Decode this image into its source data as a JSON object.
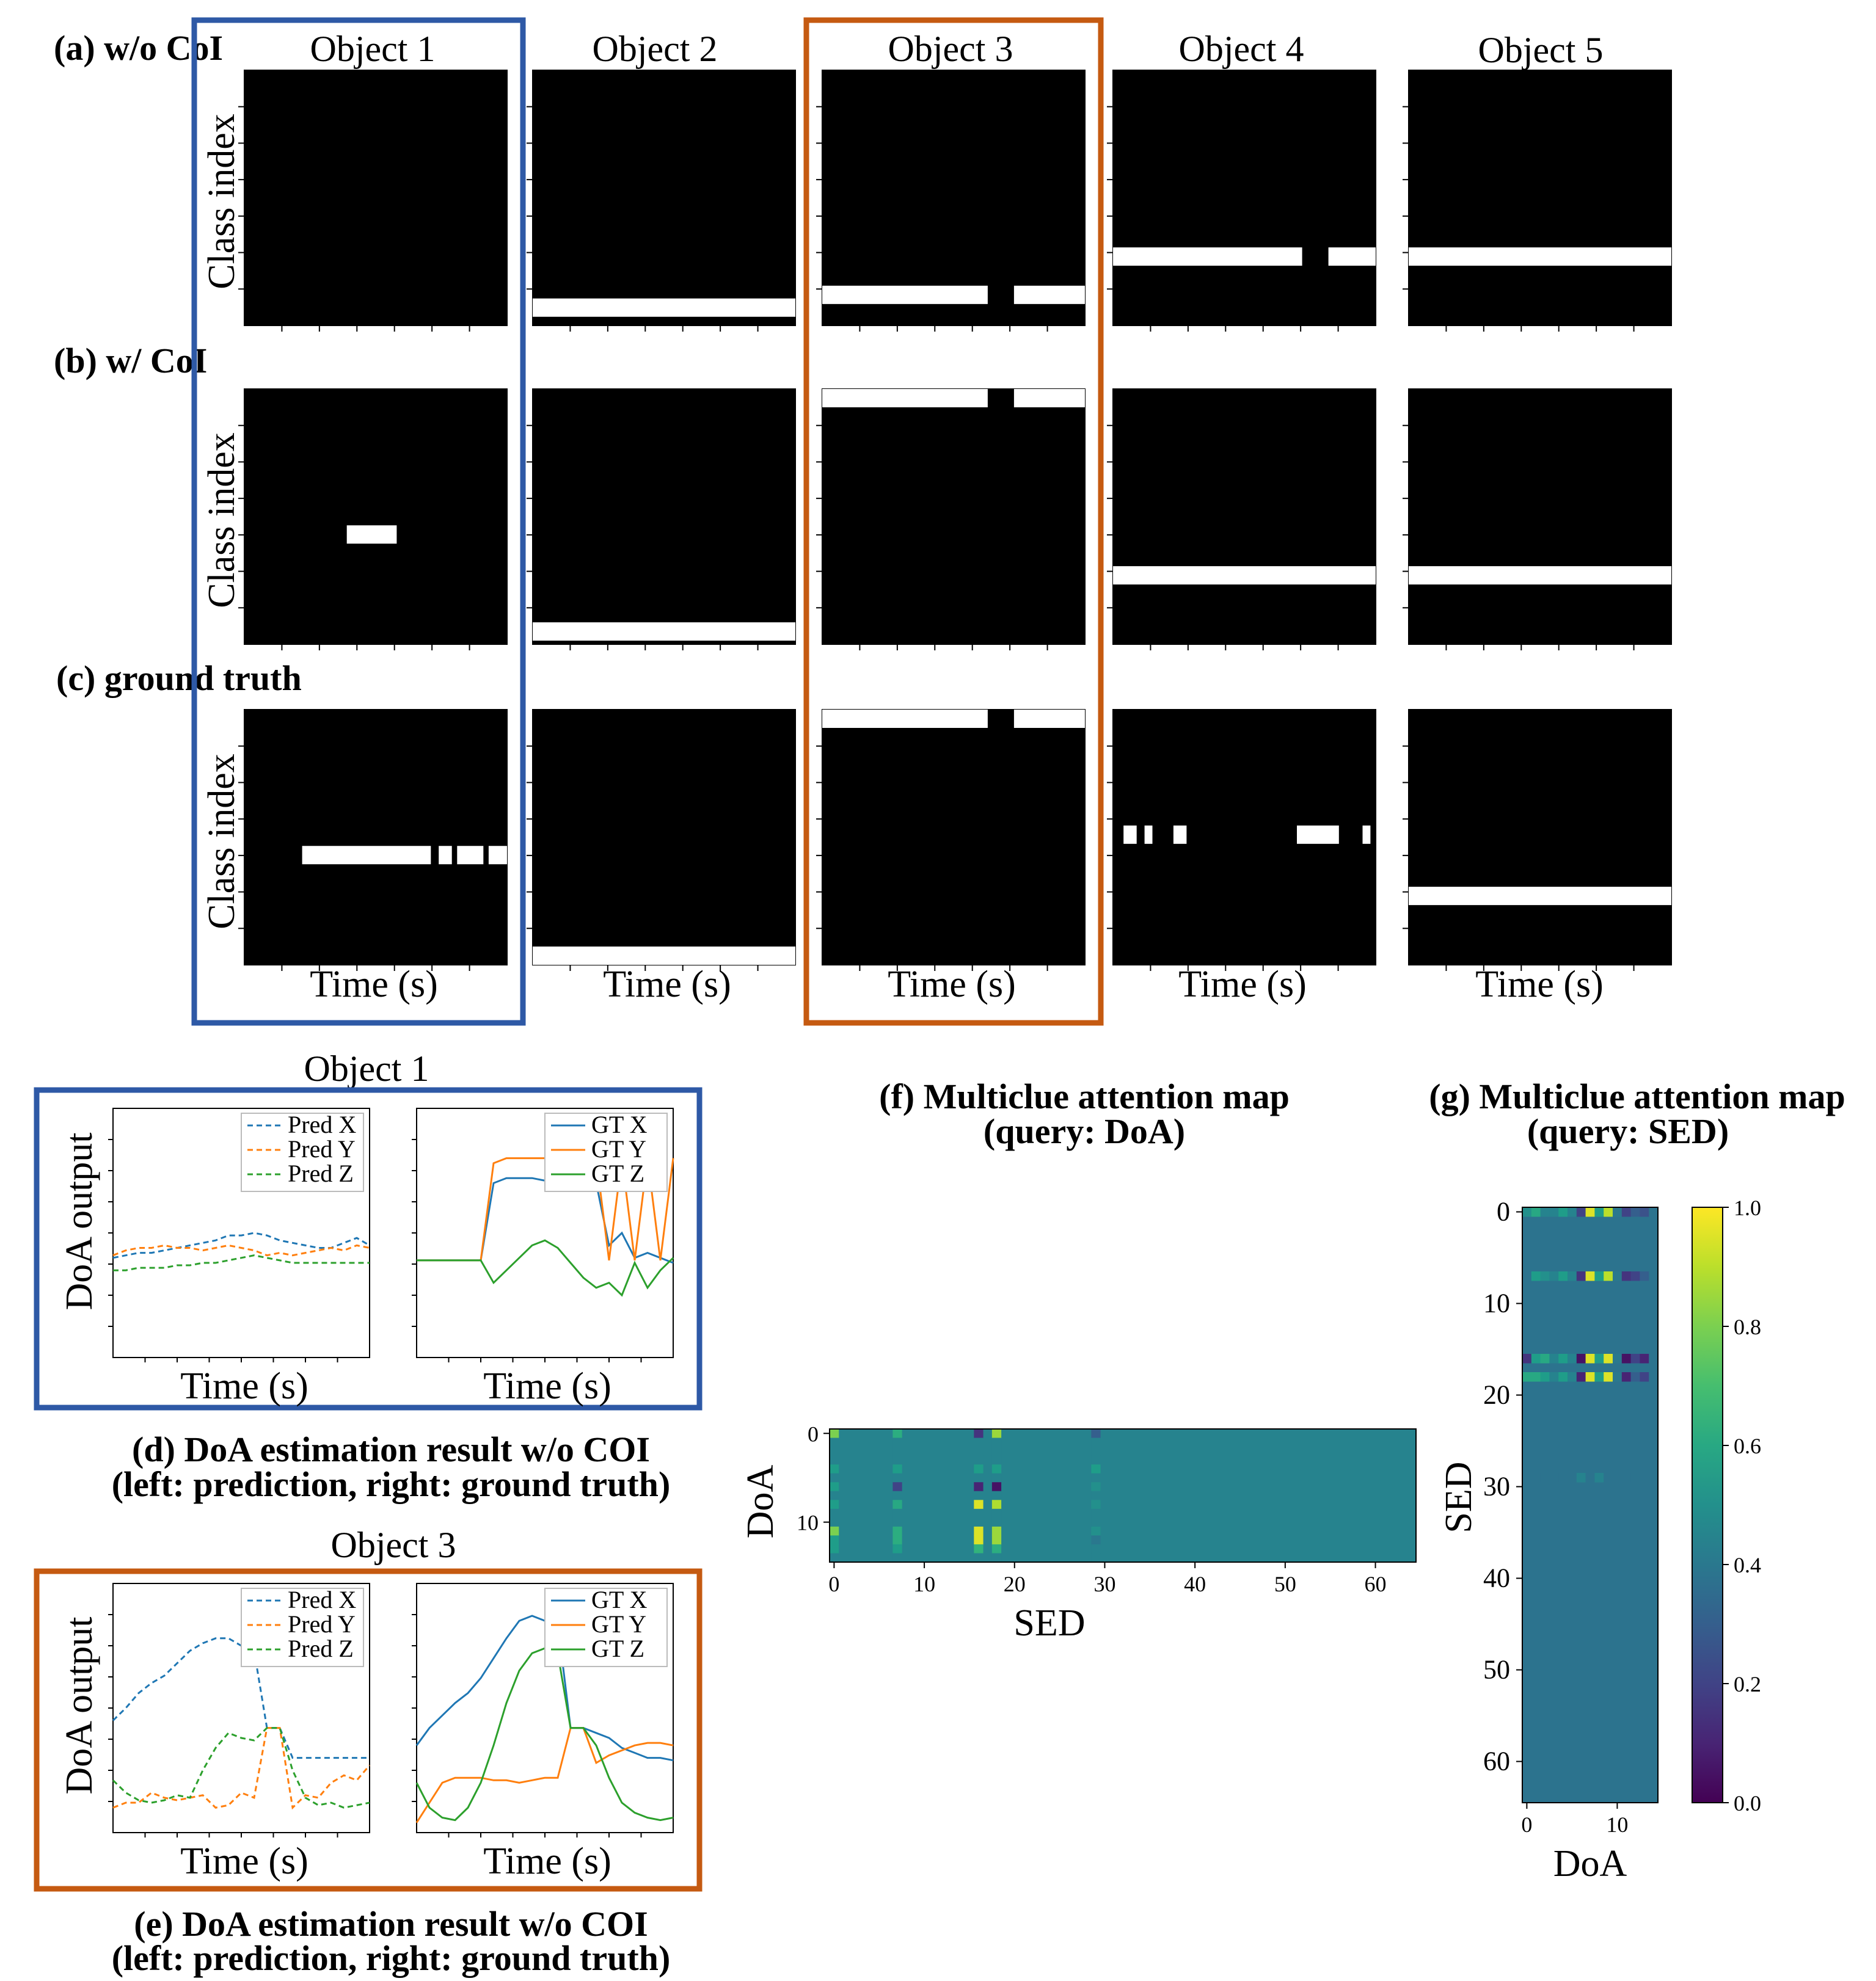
{
  "figure": {
    "row_labels": [
      "(a) w/o CoI",
      "(b) w/ CoI",
      "(c) ground truth"
    ],
    "column_titles": [
      "Object 1",
      "Object 2",
      "Object 3",
      "Object 4",
      "Object 5"
    ],
    "grid_ylabel": "Class index",
    "grid_xlabel": "Time (s)",
    "doa_ylabel": "DoA output",
    "doa_xlabel": "Time (s)",
    "doa_d_title": "Object 1",
    "doa_e_title": "Object 3",
    "caption_d": [
      "(d) DoA estimation result w/o COI",
      "(left: prediction, right: ground truth)"
    ],
    "caption_e": [
      "(e) DoA estimation result w/o COI",
      "(left: prediction, right: ground truth)"
    ],
    "caption_f": [
      "(f) Multiclue attention map",
      "(query: DoA)"
    ],
    "caption_g": [
      "(g) Multiclue attention map",
      "(query: SED)"
    ],
    "colors": {
      "highlight_object1": "#2e59a6",
      "highlight_object3": "#c55a11",
      "x": "#1f77b4",
      "y": "#ff7f0e",
      "z": "#2ca02c"
    }
  },
  "chart_data": [
    {
      "type": "heatmap",
      "name": "sed_activity_grid",
      "rows": [
        "w/o CoI",
        "w/ CoI",
        "ground truth"
      ],
      "objects": [
        "Object 1",
        "Object 2",
        "Object 3",
        "Object 4",
        "Object 5"
      ],
      "note_units": "Active segments as [class_fraction, start_fraction, end_fraction] of the time axis",
      "active": [
        [
          [],
          [
            [
              0.93,
              0.0,
              1.0
            ]
          ],
          [
            [
              0.88,
              0.0,
              0.63
            ],
            [
              0.88,
              0.73,
              1.0
            ]
          ],
          [
            [
              0.73,
              0.0,
              0.72
            ],
            [
              0.73,
              0.82,
              1.0
            ]
          ],
          [
            [
              0.73,
              0.0,
              1.0
            ]
          ]
        ],
        [
          [
            [
              0.57,
              0.39,
              0.58
            ]
          ],
          [
            [
              0.95,
              0.0,
              1.0
            ]
          ],
          [
            [
              0.03,
              0.0,
              0.63
            ],
            [
              0.03,
              0.73,
              1.0
            ]
          ],
          [
            [
              0.73,
              0.0,
              1.0
            ]
          ],
          [
            [
              0.73,
              0.0,
              1.0
            ]
          ]
        ],
        [
          [
            [
              0.57,
              0.22,
              0.71
            ],
            [
              0.57,
              0.74,
              0.79
            ],
            [
              0.57,
              0.81,
              0.91
            ],
            [
              0.57,
              0.93,
              1.0
            ]
          ],
          [
            [
              0.97,
              0.0,
              1.0
            ]
          ],
          [
            [
              0.03,
              0.0,
              0.63
            ],
            [
              0.03,
              0.73,
              1.0
            ]
          ],
          [
            [
              0.49,
              0.04,
              0.09
            ],
            [
              0.49,
              0.12,
              0.15
            ],
            [
              0.49,
              0.23,
              0.28
            ],
            [
              0.49,
              0.7,
              0.86
            ],
            [
              0.49,
              0.95,
              0.98
            ]
          ],
          [
            [
              0.73,
              0.0,
              1.0
            ]
          ]
        ]
      ]
    },
    {
      "type": "line",
      "name": "(d) Object 1 prediction",
      "x": [
        0,
        0.05,
        0.1,
        0.15,
        0.2,
        0.25,
        0.3,
        0.35,
        0.4,
        0.45,
        0.5,
        0.55,
        0.6,
        0.65,
        0.7,
        0.75,
        0.8,
        0.85,
        0.9,
        0.95,
        1.0
      ],
      "series": [
        {
          "name": "Pred X",
          "values": [
            0.4,
            0.41,
            0.42,
            0.42,
            0.43,
            0.44,
            0.45,
            0.46,
            0.47,
            0.49,
            0.49,
            0.5,
            0.49,
            0.47,
            0.46,
            0.45,
            0.44,
            0.44,
            0.46,
            0.48,
            0.45
          ]
        },
        {
          "name": "Pred Y",
          "values": [
            0.41,
            0.43,
            0.44,
            0.44,
            0.45,
            0.44,
            0.44,
            0.43,
            0.44,
            0.45,
            0.44,
            0.43,
            0.41,
            0.42,
            0.41,
            0.42,
            0.43,
            0.44,
            0.43,
            0.45,
            0.44
          ]
        },
        {
          "name": "Pred Z",
          "values": [
            0.35,
            0.35,
            0.36,
            0.36,
            0.36,
            0.37,
            0.37,
            0.38,
            0.38,
            0.39,
            0.4,
            0.41,
            0.4,
            0.39,
            0.38,
            0.38,
            0.38,
            0.38,
            0.38,
            0.38,
            0.38
          ]
        }
      ]
    },
    {
      "type": "line",
      "name": "(d) Object 1 ground truth",
      "x": [
        0,
        0.05,
        0.1,
        0.15,
        0.2,
        0.25,
        0.3,
        0.35,
        0.4,
        0.45,
        0.5,
        0.55,
        0.6,
        0.65,
        0.7,
        0.75,
        0.8,
        0.85,
        0.9,
        0.95,
        1.0
      ],
      "series": [
        {
          "name": "GT X",
          "values": [
            0.39,
            0.39,
            0.39,
            0.39,
            0.39,
            0.39,
            0.7,
            0.72,
            0.72,
            0.72,
            0.71,
            0.71,
            0.71,
            0.7,
            0.7,
            0.45,
            0.5,
            0.4,
            0.42,
            0.4,
            0.38
          ]
        },
        {
          "name": "GT Y",
          "values": [
            0.39,
            0.39,
            0.39,
            0.39,
            0.39,
            0.39,
            0.78,
            0.8,
            0.8,
            0.8,
            0.8,
            0.8,
            0.8,
            0.8,
            0.8,
            0.39,
            0.8,
            0.39,
            0.8,
            0.39,
            0.8
          ]
        },
        {
          "name": "GT Z",
          "values": [
            0.39,
            0.39,
            0.39,
            0.39,
            0.39,
            0.39,
            0.3,
            0.35,
            0.4,
            0.45,
            0.47,
            0.44,
            0.38,
            0.32,
            0.28,
            0.3,
            0.25,
            0.38,
            0.28,
            0.35,
            0.4
          ]
        }
      ]
    },
    {
      "type": "line",
      "name": "(e) Object 3 prediction",
      "x": [
        0,
        0.05,
        0.1,
        0.15,
        0.2,
        0.25,
        0.3,
        0.35,
        0.4,
        0.45,
        0.5,
        0.55,
        0.6,
        0.65,
        0.7,
        0.75,
        0.8,
        0.85,
        0.9,
        0.95,
        1.0
      ],
      "series": [
        {
          "name": "Pred X",
          "values": [
            0.45,
            0.5,
            0.56,
            0.6,
            0.63,
            0.68,
            0.73,
            0.76,
            0.78,
            0.78,
            0.75,
            0.73,
            0.42,
            0.42,
            0.3,
            0.3,
            0.3,
            0.3,
            0.3,
            0.3,
            0.3
          ]
        },
        {
          "name": "Pred Y",
          "values": [
            0.1,
            0.12,
            0.12,
            0.16,
            0.14,
            0.13,
            0.14,
            0.15,
            0.1,
            0.11,
            0.16,
            0.14,
            0.42,
            0.42,
            0.1,
            0.15,
            0.14,
            0.2,
            0.23,
            0.21,
            0.27
          ]
        },
        {
          "name": "Pred Z",
          "values": [
            0.21,
            0.16,
            0.13,
            0.12,
            0.13,
            0.15,
            0.14,
            0.25,
            0.34,
            0.4,
            0.38,
            0.37,
            0.42,
            0.42,
            0.25,
            0.14,
            0.11,
            0.12,
            0.1,
            0.11,
            0.12
          ]
        }
      ]
    },
    {
      "type": "line",
      "name": "(e) Object 3 ground truth",
      "x": [
        0,
        0.05,
        0.1,
        0.15,
        0.2,
        0.25,
        0.3,
        0.35,
        0.4,
        0.45,
        0.5,
        0.55,
        0.6,
        0.65,
        0.7,
        0.75,
        0.8,
        0.85,
        0.9,
        0.95,
        1.0
      ],
      "series": [
        {
          "name": "GT X",
          "values": [
            0.35,
            0.42,
            0.47,
            0.52,
            0.56,
            0.62,
            0.7,
            0.78,
            0.85,
            0.87,
            0.85,
            0.84,
            0.42,
            0.42,
            0.4,
            0.38,
            0.34,
            0.32,
            0.3,
            0.3,
            0.29
          ]
        },
        {
          "name": "GT Y",
          "values": [
            0.04,
            0.12,
            0.2,
            0.22,
            0.22,
            0.22,
            0.21,
            0.21,
            0.2,
            0.21,
            0.22,
            0.22,
            0.42,
            0.42,
            0.28,
            0.31,
            0.33,
            0.35,
            0.36,
            0.36,
            0.35
          ]
        },
        {
          "name": "GT Z",
          "values": [
            0.2,
            0.1,
            0.06,
            0.05,
            0.1,
            0.2,
            0.35,
            0.52,
            0.65,
            0.72,
            0.74,
            0.72,
            0.42,
            0.42,
            0.35,
            0.22,
            0.12,
            0.08,
            0.06,
            0.05,
            0.06
          ]
        }
      ]
    },
    {
      "type": "heatmap",
      "name": "(f) Multiclue attention map (query: DoA)",
      "xlabel": "SED",
      "ylabel": "DoA",
      "xticks": [
        0,
        10,
        20,
        30,
        40,
        50,
        60
      ],
      "yticks": [
        0,
        10
      ],
      "xlim": [
        0,
        65
      ],
      "ylim": [
        0,
        14
      ],
      "base_value": 0.45,
      "highlighted_columns": [
        0,
        7,
        16,
        18,
        29
      ],
      "cells": [
        {
          "col": 0,
          "values": [
            0.8,
            0.45,
            0.45,
            0.45,
            0.55,
            0.45,
            0.55,
            0.45,
            0.55,
            0.45,
            0.45,
            0.8,
            0.55,
            0.55,
            0.45
          ]
        },
        {
          "col": 7,
          "values": [
            0.62,
            0.45,
            0.45,
            0.45,
            0.55,
            0.45,
            0.2,
            0.45,
            0.6,
            0.45,
            0.45,
            0.62,
            0.62,
            0.55,
            0.45
          ]
        },
        {
          "col": 16,
          "values": [
            0.15,
            0.45,
            0.45,
            0.45,
            0.55,
            0.45,
            0.1,
            0.45,
            0.95,
            0.45,
            0.45,
            0.95,
            0.95,
            0.65,
            0.45
          ]
        },
        {
          "col": 18,
          "values": [
            0.85,
            0.45,
            0.45,
            0.45,
            0.55,
            0.45,
            0.05,
            0.45,
            0.88,
            0.45,
            0.45,
            0.85,
            0.85,
            0.62,
            0.45
          ]
        },
        {
          "col": 29,
          "values": [
            0.3,
            0.45,
            0.45,
            0.45,
            0.55,
            0.45,
            0.5,
            0.45,
            0.5,
            0.45,
            0.45,
            0.5,
            0.4,
            0.45,
            0.45
          ]
        }
      ]
    },
    {
      "type": "heatmap",
      "name": "(g) Multiclue attention map (query: SED)",
      "xlabel": "DoA",
      "ylabel": "SED",
      "xticks": [
        0,
        10
      ],
      "yticks": [
        0,
        10,
        20,
        30,
        40,
        50,
        60
      ],
      "xlim": [
        0,
        14
      ],
      "ylim": [
        0,
        65
      ],
      "base_value": 0.38,
      "highlighted_rows": [
        0,
        7,
        16,
        18,
        29
      ],
      "cells": [
        {
          "row": 0,
          "values": [
            0.5,
            0.6,
            0.45,
            0.45,
            0.55,
            0.45,
            0.2,
            0.95,
            0.55,
            0.9,
            0.4,
            0.2,
            0.3,
            0.25,
            0.38
          ]
        },
        {
          "row": 7,
          "values": [
            0.38,
            0.55,
            0.5,
            0.45,
            0.55,
            0.45,
            0.15,
            0.95,
            0.55,
            0.9,
            0.4,
            0.15,
            0.2,
            0.3,
            0.38
          ]
        },
        {
          "row": 16,
          "values": [
            0.15,
            0.55,
            0.6,
            0.45,
            0.55,
            0.45,
            0.05,
            0.95,
            0.55,
            0.95,
            0.4,
            0.05,
            0.2,
            0.1,
            0.38
          ]
        },
        {
          "row": 18,
          "values": [
            0.6,
            0.6,
            0.55,
            0.45,
            0.55,
            0.45,
            0.1,
            0.95,
            0.55,
            0.95,
            0.4,
            0.1,
            0.3,
            0.2,
            0.38
          ]
        },
        {
          "row": 29,
          "values": [
            0.38,
            0.38,
            0.38,
            0.38,
            0.38,
            0.38,
            0.45,
            0.38,
            0.45,
            0.38,
            0.38,
            0.38,
            0.38,
            0.38,
            0.38
          ]
        }
      ],
      "colorbar": {
        "colormap": "viridis",
        "min": 0.0,
        "max": 1.0,
        "ticks": [
          "0.0",
          "0.2",
          "0.4",
          "0.6",
          "0.8",
          "1.0"
        ]
      }
    }
  ]
}
